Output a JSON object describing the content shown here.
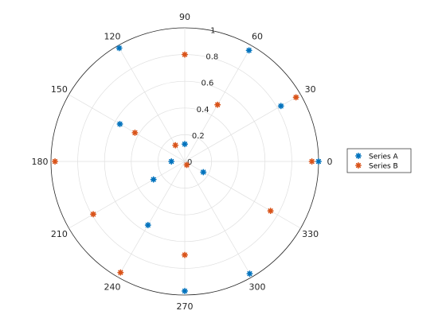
{
  "chart_data": {
    "type": "scatter",
    "subtype": "polar",
    "theta_unit": "degrees",
    "r_lim": [
      0,
      1
    ],
    "r_ticks": [
      "0",
      "0.2",
      "0.4",
      "0.6",
      "0.8",
      "1"
    ],
    "theta_ticks": [
      "0",
      "30",
      "60",
      "90",
      "120",
      "150",
      "180",
      "210",
      "240",
      "270",
      "300",
      "330"
    ],
    "grid": true,
    "legend_position": "right",
    "marker": "asterisk",
    "series": [
      {
        "name": "Series A",
        "color": "#0072bd",
        "theta": [
          0,
          30,
          60,
          90,
          120,
          150,
          180,
          210,
          240,
          270,
          300,
          330
        ],
        "r": [
          1.0,
          0.83,
          0.96,
          0.13,
          0.98,
          0.56,
          0.1,
          0.27,
          0.55,
          0.97,
          0.97,
          0.16
        ]
      },
      {
        "name": "Series B",
        "color": "#d95319",
        "theta": [
          0,
          30,
          60,
          90,
          120,
          150,
          180,
          210,
          240,
          270,
          300,
          330
        ],
        "r": [
          0.95,
          0.96,
          0.49,
          0.8,
          0.14,
          0.43,
          0.97,
          0.79,
          0.96,
          0.7,
          0.03,
          0.74
        ]
      }
    ]
  }
}
